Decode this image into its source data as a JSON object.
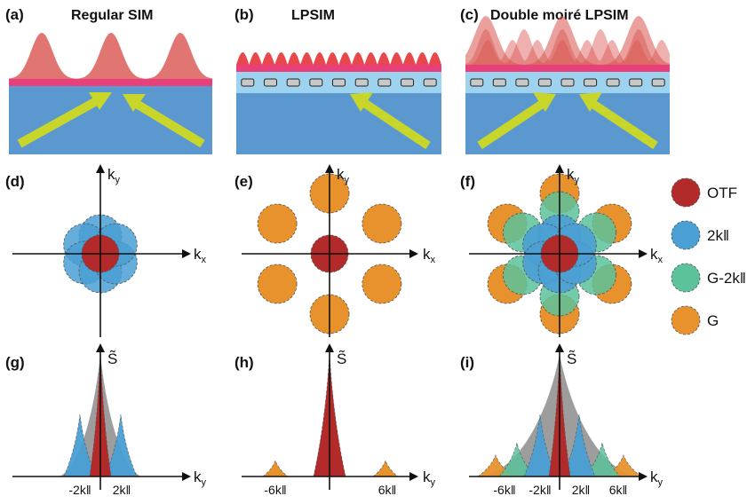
{
  "panels": {
    "a": {
      "label": "(a)",
      "title": "Regular SIM"
    },
    "b": {
      "label": "(b)",
      "title": "LPSIM"
    },
    "c": {
      "label": "(c)",
      "title": "Double moiré LPSIM"
    },
    "d": {
      "label": "(d)"
    },
    "e": {
      "label": "(e)"
    },
    "f": {
      "label": "(f)"
    },
    "g": {
      "label": "(g)"
    },
    "h": {
      "label": "(h)"
    },
    "i": {
      "label": "(i)"
    }
  },
  "axes": {
    "kx": "k",
    "kx_sub": "x",
    "ky": "k",
    "ky_sub": "y",
    "s_tilde": "S̃"
  },
  "ticks": {
    "g": [
      "-2k‖",
      "2k‖"
    ],
    "h": [
      "-6k‖",
      "6k‖"
    ],
    "i": [
      "-6k‖",
      "-2k‖",
      "2k‖",
      "6k‖"
    ]
  },
  "legend": [
    {
      "label": "OTF",
      "color": "#b22a2a"
    },
    {
      "label": "2k‖",
      "color": "#4a9fd4"
    },
    {
      "label": "G-2k‖",
      "color": "#5cc29a"
    },
    {
      "label": "G",
      "color": "#e8922e"
    }
  ],
  "colors": {
    "otf": "#b22a2a",
    "k2": "#4a9fd4",
    "gk": "#5cc29a",
    "g": "#e8922e",
    "substrate": "#5a98cf",
    "layer": "#9dd3ef",
    "film": "#e8407a",
    "wave": "#d9534f",
    "arrow": "#c8d62c"
  }
}
